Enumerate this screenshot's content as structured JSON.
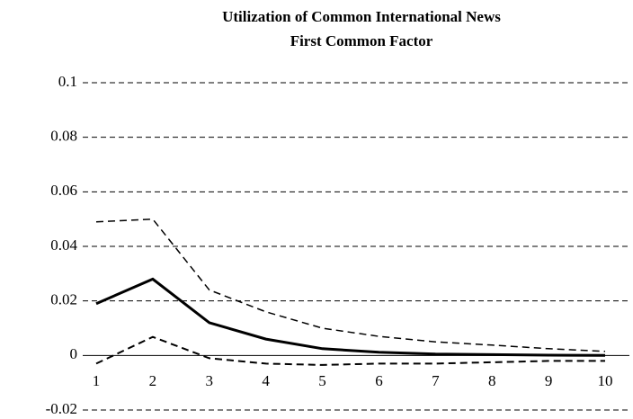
{
  "chart_data": {
    "type": "line",
    "title": "Utilization of Common International News",
    "subtitle": "First  Common Factor",
    "categories": [
      "1",
      "2",
      "3",
      "4",
      "5",
      "6",
      "7",
      "8",
      "9",
      "10"
    ],
    "series": [
      {
        "color": "#000000",
        "dash": false,
        "width": 3,
        "values": [
          0.019,
          0.028,
          0.012,
          0.006,
          0.0025,
          0.0012,
          0.0005,
          0.0003,
          0.0001,
          0
        ]
      },
      {
        "color": "#000000",
        "dash": true,
        "width": 1.5,
        "values": [
          0.049,
          0.05,
          0.024,
          0.016,
          0.01,
          0.007,
          0.005,
          0.0038,
          0.0025,
          0.0015
        ]
      },
      {
        "color": "#000000",
        "dash": true,
        "width": 2,
        "values": [
          -0.003,
          0.0068,
          -0.001,
          -0.003,
          -0.0035,
          -0.003,
          -0.003,
          -0.0025,
          -0.002,
          -0.002
        ]
      }
    ],
    "ylim": [
      -0.02,
      0.1
    ],
    "yticks": [
      -0.02,
      0,
      0.02,
      0.04,
      0.06,
      0.08,
      0.1
    ],
    "grid": true
  }
}
